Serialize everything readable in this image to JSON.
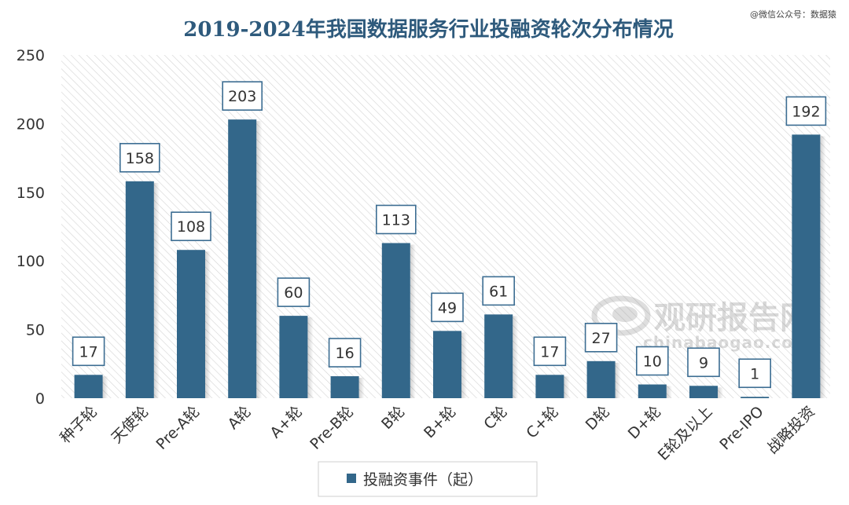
{
  "source_note": "@微信公众号：数据猿",
  "watermark": {
    "brand": "观研报告网",
    "site": "chinabaogao.com"
  },
  "chart_data": {
    "type": "bar",
    "title": "2019-2024年我国数据服务行业投融资轮次分布情况",
    "categories": [
      "种子轮",
      "天使轮",
      "Pre-A轮",
      "A轮",
      "A+轮",
      "Pre-B轮",
      "B轮",
      "B+轮",
      "C轮",
      "C+轮",
      "D轮",
      "D+轮",
      "E轮及以上",
      "Pre-IPO",
      "战略投资"
    ],
    "series": [
      {
        "name": "投融资事件（起）",
        "values": [
          17,
          158,
          108,
          203,
          60,
          16,
          113,
          49,
          61,
          17,
          27,
          10,
          9,
          1,
          192
        ]
      }
    ],
    "yticks": [
      "0",
      "50",
      "100",
      "150",
      "200",
      "250"
    ],
    "ylim": [
      0,
      250
    ],
    "xlabel": "",
    "ylabel": "",
    "grid": false,
    "data_labels": true,
    "legend_position": "bottom",
    "colors": {
      "bar": "#33678a",
      "title": "#2e5a7c",
      "label_border": "#3c6d92",
      "text": "#333333",
      "hatch": "#d4d4d4"
    }
  }
}
